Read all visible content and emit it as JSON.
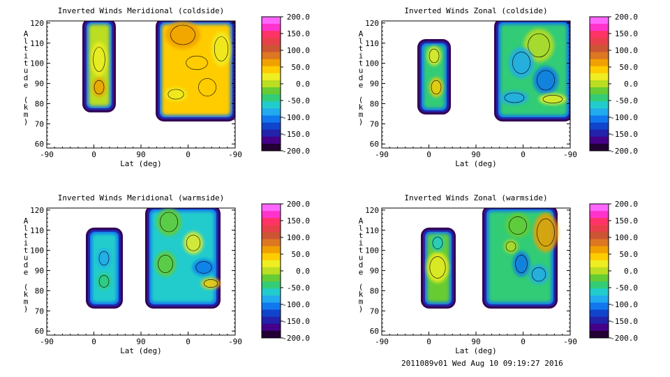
{
  "footer": "2011089v01 Wed Aug 10 09:19:27 2016",
  "colorbar": {
    "ticks": [
      "200.0",
      "150.0",
      "100.0",
      "50.0",
      "0.0",
      "-50.0",
      "-100.0",
      "-150.0",
      "-200.0"
    ],
    "colors_top_to_bottom": [
      "#ff66ff",
      "#ff33cc",
      "#ff3366",
      "#e8404a",
      "#cc5533",
      "#dd7722",
      "#f0a000",
      "#ffcc00",
      "#eeee22",
      "#bbdd22",
      "#66cc33",
      "#33cc77",
      "#22cccc",
      "#22aaee",
      "#1177ee",
      "#1144cc",
      "#2222aa",
      "#440088",
      "#220033"
    ]
  },
  "chart_data": [
    {
      "type": "heatmap",
      "title": "Inverted Winds Meridional (coldside)",
      "xlabel": "Lat (deg)",
      "ylabel": "Altitude (km)",
      "x_ticks": [
        "-90",
        "0",
        "90",
        "0",
        "-90"
      ],
      "y_ticks": [
        "60",
        "70",
        "80",
        "90",
        "100",
        "110",
        "120"
      ],
      "ylim": [
        58,
        121
      ],
      "zlim": [
        -200,
        200
      ],
      "note_regions": [
        {
          "lat_range": [
            -10,
            40
          ],
          "alt_range": [
            79,
            109
          ],
          "dominant_value": 10
        },
        {
          "lat_range": [
            -40,
            -90
          ],
          "alt_range": [
            75,
            120
          ],
          "dominant_value": 40
        }
      ]
    },
    {
      "type": "heatmap",
      "title": "Inverted Winds Zonal (coldside)",
      "xlabel": "Lat (deg)",
      "ylabel": "Altitude (km)",
      "x_ticks": [
        "-90",
        "0",
        "90",
        "0",
        "-90"
      ],
      "y_ticks": [
        "60",
        "70",
        "80",
        "90",
        "100",
        "110",
        "120"
      ],
      "ylim": [
        58,
        121
      ],
      "zlim": [
        -200,
        200
      ],
      "note_regions": [
        {
          "lat_range": [
            -10,
            40
          ],
          "alt_range": [
            79,
            109
          ],
          "dominant_value": -40
        },
        {
          "lat_range": [
            -40,
            -90
          ],
          "alt_range": [
            75,
            120
          ],
          "dominant_value": -60
        }
      ]
    },
    {
      "type": "heatmap",
      "title": "Inverted Winds Meridional (warmside)",
      "xlabel": "Lat (deg)",
      "ylabel": "Altitude (km)",
      "x_ticks": [
        "-90",
        "0",
        "90",
        "0",
        "-90"
      ],
      "y_ticks": [
        "60",
        "70",
        "80",
        "90",
        "100",
        "110",
        "120"
      ],
      "ylim": [
        58,
        121
      ],
      "zlim": [
        -200,
        200
      ],
      "note_regions": [
        {
          "lat_range": [
            -10,
            40
          ],
          "alt_range": [
            76,
            109
          ],
          "dominant_value": -60
        },
        {
          "lat_range": [
            -40,
            -90
          ],
          "alt_range": [
            76,
            120
          ],
          "dominant_value": -70
        }
      ]
    },
    {
      "type": "heatmap",
      "title": "Inverted Winds Zonal (warmside)",
      "xlabel": "Lat (deg)",
      "ylabel": "Altitude (km)",
      "x_ticks": [
        "-90",
        "0",
        "90",
        "0",
        "-90"
      ],
      "y_ticks": [
        "60",
        "70",
        "80",
        "90",
        "100",
        "110",
        "120"
      ],
      "ylim": [
        58,
        121
      ],
      "zlim": [
        -200,
        200
      ],
      "note_regions": [
        {
          "lat_range": [
            -10,
            40
          ],
          "alt_range": [
            76,
            109
          ],
          "dominant_value": -20
        },
        {
          "lat_range": [
            -40,
            -90
          ],
          "alt_range": [
            76,
            120
          ],
          "dominant_value": -50
        }
      ]
    }
  ]
}
